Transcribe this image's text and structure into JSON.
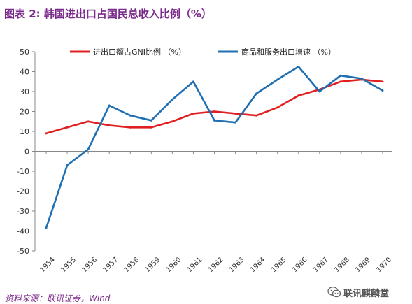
{
  "header": {
    "title": "图表 2: 韩国进出口占国民总收入比例（%）"
  },
  "footer": {
    "source": "资料来源：联讯证券，Wind",
    "watermark": "联讯麒麟堂",
    "watermark_icon": "wechat-icon"
  },
  "colors": {
    "series1": "#e02020",
    "series2": "#1f6fb2",
    "title": "#7a2a8a"
  },
  "chart_data": {
    "type": "line",
    "x": [
      "1954",
      "1955",
      "1956",
      "1957",
      "1958",
      "1959",
      "1960",
      "1961",
      "1962",
      "1963",
      "1964",
      "1965",
      "1966",
      "1967",
      "1968",
      "1969",
      "1970"
    ],
    "ylim": [
      -50,
      50
    ],
    "yticks": [
      -50,
      -40,
      -30,
      -20,
      -10,
      0,
      10,
      20,
      30,
      40,
      50
    ],
    "grid": false,
    "legend_position": "top",
    "series": [
      {
        "name": "进出口额占GNI比例 （%）",
        "color": "#e02020",
        "values": [
          9,
          12,
          15,
          13,
          12,
          12,
          15,
          19,
          20,
          19,
          18,
          22,
          28,
          31,
          35,
          36,
          35
        ]
      },
      {
        "name": "商品和服务出口增速 （%）",
        "color": "#1f6fb2",
        "values": [
          -38.5,
          -7,
          1,
          23,
          18,
          15.5,
          26,
          35,
          15.5,
          14.5,
          29,
          36,
          42.5,
          30,
          38,
          36.5,
          30.5
        ]
      }
    ]
  }
}
